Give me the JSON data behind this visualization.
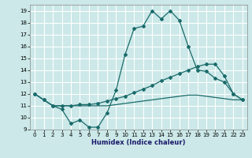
{
  "xlabel": "Humidex (Indice chaleur)",
  "bg_color": "#cce8e8",
  "grid_color": "#ffffff",
  "line_color": "#1a6b6b",
  "xlim": [
    -0.5,
    23.5
  ],
  "ylim": [
    9,
    19.5
  ],
  "xticks": [
    0,
    1,
    2,
    3,
    4,
    5,
    6,
    7,
    8,
    9,
    10,
    11,
    12,
    13,
    14,
    15,
    16,
    17,
    18,
    19,
    20,
    21,
    22,
    23
  ],
  "yticks": [
    9,
    10,
    11,
    12,
    13,
    14,
    15,
    16,
    17,
    18,
    19
  ],
  "line1_x": [
    0,
    1,
    2,
    3,
    4,
    5,
    6,
    7,
    8,
    9,
    10,
    11,
    12,
    13,
    14,
    15,
    16,
    17,
    18,
    19,
    20,
    21,
    22,
    23
  ],
  "line1_y": [
    12.0,
    11.5,
    11.0,
    10.7,
    9.5,
    9.8,
    9.2,
    9.2,
    10.4,
    12.3,
    15.3,
    17.5,
    17.7,
    19.0,
    18.3,
    19.0,
    18.2,
    16.0,
    14.0,
    13.9,
    13.3,
    13.0,
    12.0,
    11.5
  ],
  "line2_x": [
    0,
    1,
    2,
    3,
    4,
    5,
    6,
    7,
    8,
    9,
    10,
    11,
    12,
    13,
    14,
    15,
    16,
    17,
    18,
    19,
    20,
    21,
    22,
    23
  ],
  "line2_y": [
    12.0,
    11.5,
    11.0,
    11.0,
    11.0,
    11.1,
    11.1,
    11.2,
    11.4,
    11.6,
    11.8,
    12.1,
    12.4,
    12.7,
    13.1,
    13.4,
    13.7,
    14.0,
    14.3,
    14.5,
    14.5,
    13.5,
    12.0,
    11.5
  ],
  "line3_x": [
    0,
    1,
    2,
    3,
    4,
    5,
    6,
    7,
    8,
    9,
    10,
    11,
    12,
    13,
    14,
    15,
    16,
    17,
    18,
    19,
    20,
    21,
    22,
    23
  ],
  "line3_y": [
    12.0,
    11.5,
    11.0,
    11.0,
    11.0,
    11.0,
    11.0,
    11.0,
    11.0,
    11.1,
    11.2,
    11.3,
    11.4,
    11.5,
    11.6,
    11.7,
    11.8,
    11.9,
    11.9,
    11.8,
    11.7,
    11.6,
    11.5,
    11.5
  ]
}
